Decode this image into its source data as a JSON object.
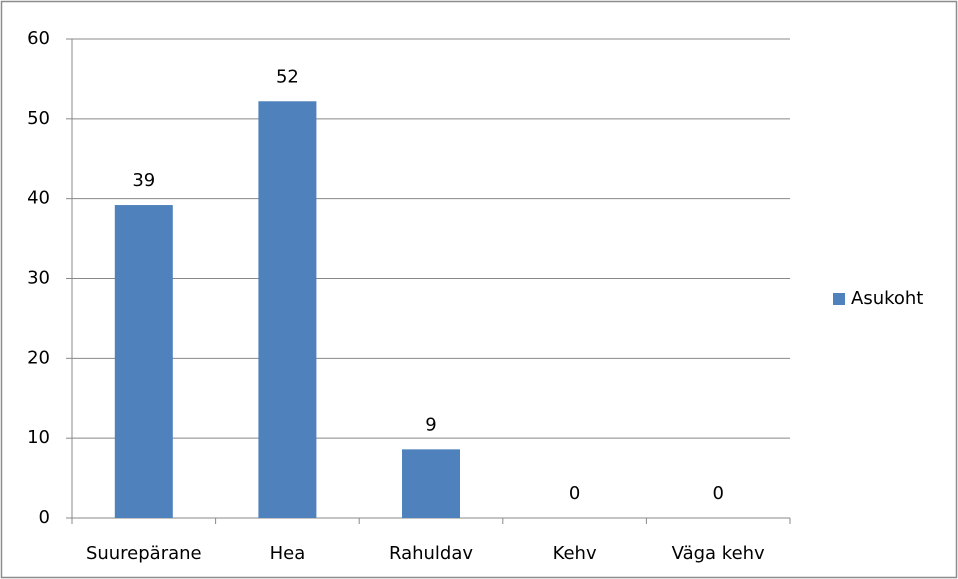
{
  "chart_data": {
    "type": "bar",
    "categories": [
      "Suurepärane",
      "Hea",
      "Rahuldav",
      "Kehv",
      "Väga kehv"
    ],
    "series": [
      {
        "name": "Asukoht",
        "color": "#4f81bd",
        "values": [
          39.2,
          52.2,
          8.6,
          0,
          0
        ],
        "value_labels": [
          "39",
          "52",
          "9",
          "0",
          "0"
        ]
      }
    ],
    "ylim": [
      0,
      60
    ],
    "yticks": [
      0,
      10,
      20,
      30,
      40,
      50,
      60
    ],
    "grid": true,
    "legend": "right"
  }
}
